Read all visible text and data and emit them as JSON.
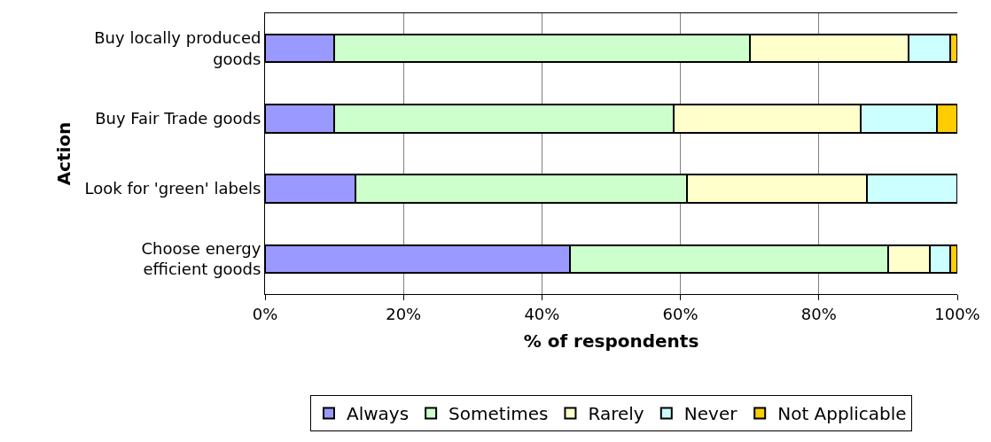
{
  "chart_data": {
    "type": "bar",
    "orientation": "horizontal",
    "stacked": true,
    "xlabel": "% of respondents",
    "ylabel": "Action",
    "categories": [
      "Buy locally produced goods",
      "Buy Fair Trade goods",
      "Look for 'green' labels",
      "Choose energy efficient goods"
    ],
    "series": [
      {
        "name": "Always",
        "color": "#9999ff",
        "values": [
          10,
          10,
          13,
          44
        ]
      },
      {
        "name": "Sometimes",
        "color": "#ccffcc",
        "values": [
          60,
          49,
          48,
          46
        ]
      },
      {
        "name": "Rarely",
        "color": "#ffffcc",
        "values": [
          23,
          27,
          26,
          6
        ]
      },
      {
        "name": "Never",
        "color": "#ccffff",
        "values": [
          6,
          11,
          13,
          3
        ]
      },
      {
        "name": "Not Applicable",
        "color": "#ffcc00",
        "values": [
          1,
          3,
          null,
          1
        ]
      }
    ],
    "xlim": [
      0,
      100
    ],
    "xticks": [
      {
        "value": 0,
        "label": "0%"
      },
      {
        "value": 20,
        "label": "20%"
      },
      {
        "value": 40,
        "label": "40%"
      },
      {
        "value": 60,
        "label": "60%"
      },
      {
        "value": 80,
        "label": "80%"
      },
      {
        "value": 100,
        "label": "100%"
      }
    ],
    "grid": "x",
    "legend": "bottom"
  }
}
